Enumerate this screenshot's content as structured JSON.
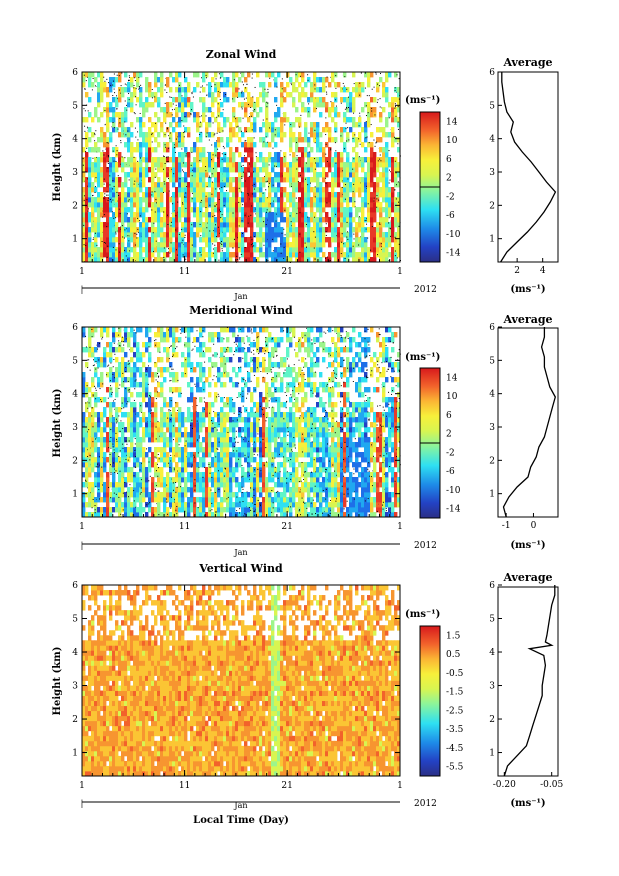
{
  "colorbar_unit": "(ms⁻¹)",
  "panels": [
    {
      "title": "Zonal Wind",
      "ylabel": "Height (km)",
      "month": "Jan",
      "year": "2012",
      "colorbar_ticks": [
        "14",
        "10",
        "6",
        "2",
        "-2",
        "-6",
        "-10",
        "-14"
      ],
      "profile_title": "Average",
      "profile_xlabel": "(ms⁻¹)",
      "profile_xticks": [
        "2",
        "4"
      ]
    },
    {
      "title": "Meridional Wind",
      "ylabel": "Height (km)",
      "month": "Jan",
      "year": "2012",
      "colorbar_ticks": [
        "14",
        "10",
        "6",
        "2",
        "-2",
        "-6",
        "-10",
        "-14"
      ],
      "profile_title": "Average",
      "profile_xlabel": "(ms⁻¹)",
      "profile_xticks": [
        "-1",
        "0"
      ]
    },
    {
      "title": "Vertical Wind",
      "ylabel": "Height (km)",
      "month": "Jan",
      "year": "2012",
      "colorbar_ticks": [
        "1.5",
        "0.5",
        "-0.5",
        "-1.5",
        "-2.5",
        "-3.5",
        "-4.5",
        "-5.5"
      ],
      "profile_title": "Average",
      "profile_xlabel": "(ms⁻¹)",
      "profile_xticks": [
        "-0.20",
        "-0.05"
      ]
    }
  ],
  "shared_xlabel": "Local Time (Day)",
  "chart_data": [
    {
      "type": "heatmap",
      "title": "Zonal Wind",
      "xlabel": "",
      "ylabel": "Height (km)",
      "x_ticks": [
        "1",
        "11",
        "21",
        "1"
      ],
      "y_ticks": [
        "1",
        "2",
        "3",
        "4",
        "5",
        "6"
      ],
      "ylim": [
        0.3,
        6
      ],
      "colorbar": {
        "unit": "(ms⁻¹)",
        "range": [
          -16,
          16
        ],
        "colors": [
          "#2b2f86",
          "#2342c4",
          "#1e6fe8",
          "#20a8f0",
          "#2ee0f2",
          "#5ff5c8",
          "#9cf58a",
          "#d8f551",
          "#f7f03a",
          "#fbc534",
          "#f79530",
          "#f2622b",
          "#e83a28",
          "#d7191c"
        ]
      },
      "profile": {
        "title": "Average",
        "xlabel": "(ms⁻¹)",
        "xlim": [
          0.5,
          5.2
        ],
        "x_ticks": [
          2,
          4
        ],
        "height": [
          0.3,
          0.6,
          0.9,
          1.2,
          1.5,
          1.8,
          2.1,
          2.4,
          2.7,
          3.0,
          3.3,
          3.6,
          3.9,
          4.2,
          4.5,
          4.8,
          5.1,
          5.4,
          5.7,
          6.0
        ],
        "values": [
          0.7,
          1.2,
          2.0,
          2.8,
          3.5,
          4.1,
          4.6,
          5.0,
          4.3,
          3.7,
          3.1,
          2.4,
          1.8,
          1.5,
          1.7,
          1.2,
          1.0,
          0.9,
          0.8,
          0.8
        ]
      }
    },
    {
      "type": "heatmap",
      "title": "Meridional Wind",
      "xlabel": "",
      "ylabel": "Height (km)",
      "x_ticks": [
        "1",
        "11",
        "21",
        "1"
      ],
      "y_ticks": [
        "1",
        "2",
        "3",
        "4",
        "5",
        "6"
      ],
      "ylim": [
        0.3,
        6
      ],
      "colorbar": {
        "unit": "(ms⁻¹)",
        "range": [
          -16,
          16
        ],
        "colors": [
          "#2b2f86",
          "#2342c4",
          "#1e6fe8",
          "#20a8f0",
          "#2ee0f2",
          "#5ff5c8",
          "#9cf58a",
          "#d8f551",
          "#f7f03a",
          "#fbc534",
          "#f79530",
          "#f2622b",
          "#e83a28",
          "#d7191c"
        ]
      },
      "profile": {
        "title": "Average",
        "xlabel": "(ms⁻¹)",
        "xlim": [
          -1.3,
          0.9
        ],
        "x_ticks": [
          -1,
          0
        ],
        "height": [
          0.3,
          0.6,
          0.9,
          1.2,
          1.5,
          1.8,
          2.1,
          2.4,
          2.7,
          3.0,
          3.3,
          3.6,
          3.9,
          4.2,
          4.5,
          4.8,
          5.1,
          5.4,
          5.7,
          6.0
        ],
        "values": [
          -1.0,
          -1.1,
          -0.9,
          -0.6,
          -0.2,
          -0.1,
          0.1,
          0.2,
          0.4,
          0.5,
          0.6,
          0.7,
          0.8,
          0.6,
          0.5,
          0.4,
          0.4,
          0.3,
          0.4,
          0.4
        ]
      }
    },
    {
      "type": "heatmap",
      "title": "Vertical Wind",
      "xlabel": "Local Time (Day)",
      "ylabel": "Height (km)",
      "x_ticks": [
        "1",
        "11",
        "21",
        "1"
      ],
      "y_ticks": [
        "1",
        "2",
        "3",
        "4",
        "5",
        "6"
      ],
      "ylim": [
        0.3,
        6
      ],
      "colorbar": {
        "unit": "(ms⁻¹)",
        "range": [
          -6,
          2
        ],
        "colors": [
          "#2b2f86",
          "#2342c4",
          "#1e6fe8",
          "#20a8f0",
          "#2ee0f2",
          "#5ff5c8",
          "#9cf58a",
          "#d8f551",
          "#f7f03a",
          "#fbc534",
          "#f79530",
          "#f2622b",
          "#e83a28",
          "#d7191c"
        ]
      },
      "profile": {
        "title": "Average",
        "xlabel": "(ms⁻¹)",
        "xlim": [
          -0.22,
          -0.03
        ],
        "x_ticks": [
          -0.2,
          -0.05
        ],
        "height": [
          0.3,
          0.6,
          0.9,
          1.2,
          1.5,
          1.8,
          2.1,
          2.4,
          2.7,
          3.0,
          3.3,
          3.6,
          3.9,
          4.1,
          4.2,
          4.3,
          4.5,
          4.8,
          5.1,
          5.4,
          5.7,
          6.0
        ],
        "values": [
          -0.2,
          -0.19,
          -0.16,
          -0.13,
          -0.12,
          -0.11,
          -0.1,
          -0.09,
          -0.08,
          -0.08,
          -0.075,
          -0.07,
          -0.075,
          -0.12,
          -0.05,
          -0.07,
          -0.065,
          -0.06,
          -0.055,
          -0.05,
          -0.04,
          -0.04
        ]
      }
    }
  ]
}
